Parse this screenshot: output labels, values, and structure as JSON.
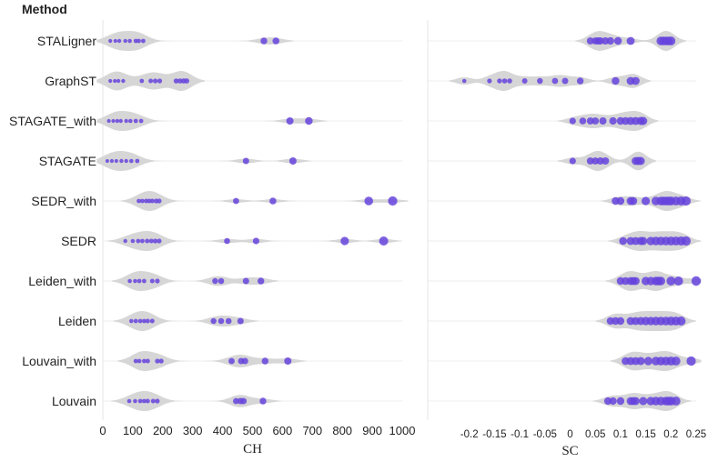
{
  "header": {
    "method_label": "Method"
  },
  "chart_data": {
    "type": "violin-strip",
    "methods": [
      "STALigner",
      "GraphST",
      "STAGATE_with",
      "STAGATE",
      "SEDR_with",
      "SEDR",
      "Leiden_with",
      "Leiden",
      "Louvain_with",
      "Louvain"
    ],
    "colors": {
      "point": "#6644dd",
      "violin": "#d6d6d6"
    },
    "panels": [
      {
        "xlabel": "CH",
        "xlim": [
          0,
          1000
        ],
        "ticks": [
          0,
          100,
          200,
          300,
          400,
          500,
          600,
          700,
          800,
          900,
          1000
        ],
        "tick_labels": [
          "0",
          "100",
          "200",
          "300",
          "400",
          "500",
          "600",
          "700",
          "800",
          "900",
          "1000"
        ],
        "series": [
          {
            "name": "STALigner",
            "values": [
              25,
              42,
              55,
              75,
              90,
              110,
              120,
              135,
              538,
              578
            ]
          },
          {
            "name": "GraphST",
            "values": [
              25,
              40,
              52,
              68,
              130,
              160,
              175,
              190,
              245,
              258,
              270,
              280
            ]
          },
          {
            "name": "STAGATE_with",
            "values": [
              20,
              35,
              48,
              60,
              78,
              92,
              110,
              128,
              625,
              688
            ]
          },
          {
            "name": "STAGATE",
            "values": [
              15,
              30,
              45,
              62,
              78,
              95,
              115,
              478,
              635
            ]
          },
          {
            "name": "SEDR_with",
            "values": [
              120,
              132,
              145,
              155,
              165,
              178,
              188,
              445,
              568,
              888,
              968
            ]
          },
          {
            "name": "SEDR",
            "values": [
              75,
              100,
              118,
              132,
              148,
              162,
              175,
              188,
              415,
              512,
              808,
              938
            ]
          },
          {
            "name": "Leiden_with",
            "values": [
              90,
              108,
              122,
              138,
              165,
              182,
              375,
              395,
              478,
              528
            ]
          },
          {
            "name": "Leiden",
            "values": [
              95,
              110,
              125,
              138,
              150,
              165,
              370,
              395,
              420,
              460
            ]
          },
          {
            "name": "Louvain_with",
            "values": [
              110,
              122,
              138,
              150,
              182,
              195,
              430,
              462,
              475,
              542,
              618
            ]
          },
          {
            "name": "Louvain",
            "values": [
              88,
              108,
              125,
              138,
              150,
              168,
              182,
              445,
              460,
              470,
              535
            ]
          }
        ]
      },
      {
        "xlabel": "SC",
        "xlim": [
          -0.25,
          0.25
        ],
        "ticks": [
          -0.2,
          -0.15,
          -0.1,
          -0.05,
          0,
          0.05,
          0.1,
          0.15,
          0.2,
          0.25
        ],
        "tick_labels": [
          "-0.2",
          "-0.15",
          "-0.1",
          "-0.05",
          "0",
          "0.05",
          "0.1",
          "0.15",
          "0.2",
          "0.25"
        ],
        "series": [
          {
            "name": "STALigner",
            "values": [
              0.04,
              0.05,
              0.055,
              0.06,
              0.07,
              0.08,
              0.095,
              0.12,
              0.18,
              0.185,
              0.19,
              0.195,
              0.2
            ]
          },
          {
            "name": "GraphST",
            "values": [
              -0.21,
              -0.16,
              -0.14,
              -0.13,
              -0.12,
              -0.09,
              -0.06,
              -0.03,
              -0.01,
              0.02,
              0.09,
              0.12,
              0.13
            ]
          },
          {
            "name": "STAGATE_with",
            "values": [
              0.005,
              0.025,
              0.04,
              0.05,
              0.065,
              0.085,
              0.1,
              0.11,
              0.12,
              0.13,
              0.14,
              0.145
            ]
          },
          {
            "name": "STAGATE",
            "values": [
              0.005,
              0.04,
              0.05,
              0.06,
              0.07,
              0.13,
              0.135,
              0.14
            ]
          },
          {
            "name": "SEDR_with",
            "values": [
              0.09,
              0.1,
              0.12,
              0.125,
              0.15,
              0.17,
              0.18,
              0.185,
              0.19,
              0.195,
              0.2,
              0.21,
              0.22,
              0.23
            ]
          },
          {
            "name": "SEDR",
            "values": [
              0.105,
              0.12,
              0.13,
              0.14,
              0.145,
              0.16,
              0.17,
              0.18,
              0.19,
              0.2,
              0.21,
              0.22,
              0.23
            ]
          },
          {
            "name": "Leiden_with",
            "values": [
              0.1,
              0.11,
              0.12,
              0.125,
              0.13,
              0.15,
              0.16,
              0.17,
              0.175,
              0.18,
              0.2,
              0.215,
              0.25
            ]
          },
          {
            "name": "Leiden",
            "values": [
              0.08,
              0.09,
              0.1,
              0.12,
              0.13,
              0.14,
              0.15,
              0.16,
              0.17,
              0.18,
              0.19,
              0.2,
              0.21,
              0.22
            ]
          },
          {
            "name": "Louvain_with",
            "values": [
              0.11,
              0.12,
              0.13,
              0.14,
              0.155,
              0.17,
              0.18,
              0.19,
              0.2,
              0.21,
              0.24
            ]
          },
          {
            "name": "Louvain",
            "values": [
              0.075,
              0.085,
              0.1,
              0.12,
              0.125,
              0.13,
              0.145,
              0.16,
              0.17,
              0.18,
              0.19,
              0.195,
              0.2,
              0.21
            ]
          }
        ]
      }
    ]
  }
}
